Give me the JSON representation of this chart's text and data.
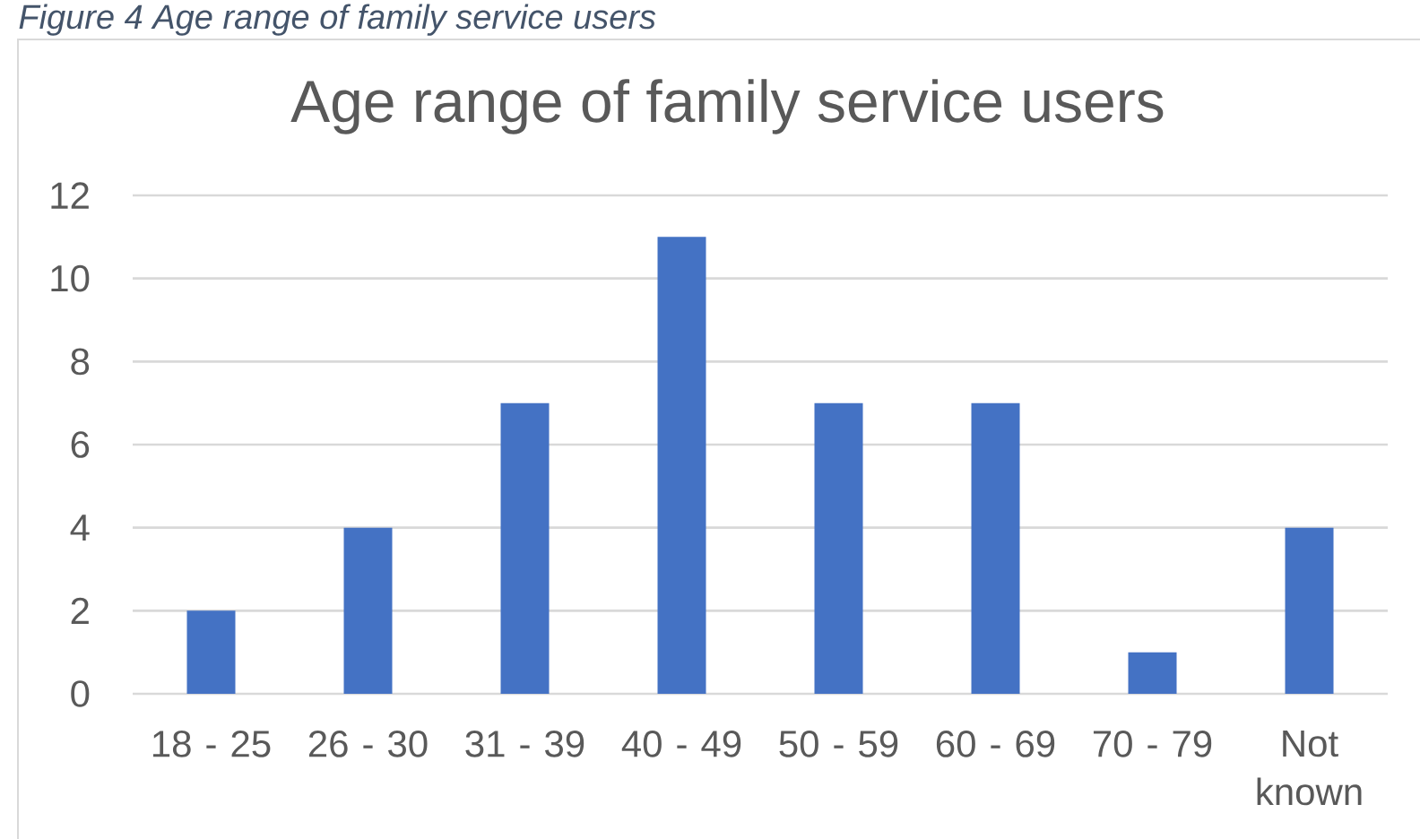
{
  "chart_data": {
    "type": "bar",
    "title": "Age range of family service users",
    "annotations": [
      "Figure 4 Age range of family service users"
    ],
    "categories": [
      "18 - 25",
      "26 - 30",
      "31 - 39",
      "40 - 49",
      "50 - 59",
      "60 - 69",
      "70 - 79",
      "Not known"
    ],
    "values": [
      2,
      4,
      7,
      11,
      7,
      7,
      1,
      4
    ],
    "color": "#4472c4",
    "ylim": [
      0,
      12
    ],
    "yticks": [
      0,
      2,
      4,
      6,
      8,
      10,
      12
    ],
    "grid": "y"
  }
}
